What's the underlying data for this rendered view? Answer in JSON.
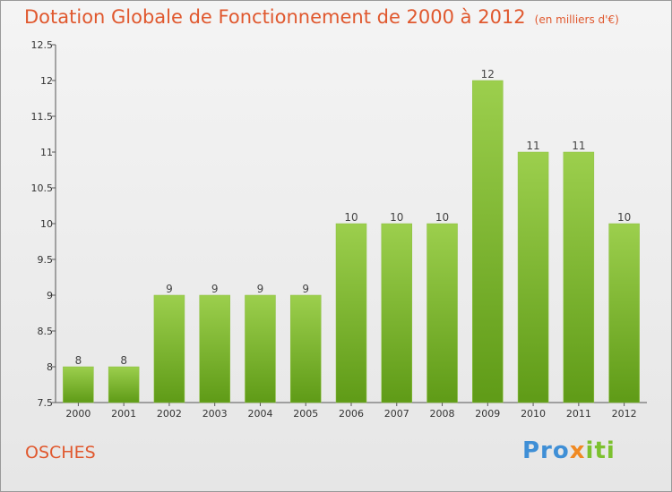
{
  "header": {
    "title": "Dotation Globale de Fonctionnement de 2000 à 2012",
    "subtitle": "(en milliers d'€)"
  },
  "footer": {
    "commune": "OSCHES",
    "logo_parts": [
      "Pro",
      "x",
      "iti"
    ]
  },
  "colors": {
    "title": "#e0582e",
    "bar_top": "#9ccf4d",
    "bar_bottom": "#5f9b17",
    "logo_blue": "#3f8fd6",
    "logo_orange": "#f08a23",
    "logo_green": "#7cc12f"
  },
  "chart_data": {
    "type": "bar",
    "title": "Dotation Globale de Fonctionnement de 2000 à 2012",
    "subtitle": "(en milliers d'€)",
    "categories": [
      "2000",
      "2001",
      "2002",
      "2003",
      "2004",
      "2005",
      "2006",
      "2007",
      "2008",
      "2009",
      "2010",
      "2011",
      "2012"
    ],
    "values": [
      8,
      8,
      9,
      9,
      9,
      9,
      10,
      10,
      10,
      12,
      11,
      11,
      10
    ],
    "value_labels": [
      "8",
      "8",
      "9",
      "9",
      "9",
      "9",
      "10",
      "10",
      "10",
      "12",
      "11",
      "11",
      "10"
    ],
    "ylim": [
      7.5,
      12.5
    ],
    "yticks": [
      7.5,
      8,
      8.5,
      9,
      9.5,
      10,
      10.5,
      11,
      11.5,
      12,
      12.5
    ],
    "ytick_labels": [
      "7.5",
      "8",
      "8.5",
      "9",
      "9.5",
      "10",
      "10.5",
      "11",
      "11.5",
      "12",
      "12.5"
    ],
    "grid": false,
    "legend": "none"
  }
}
